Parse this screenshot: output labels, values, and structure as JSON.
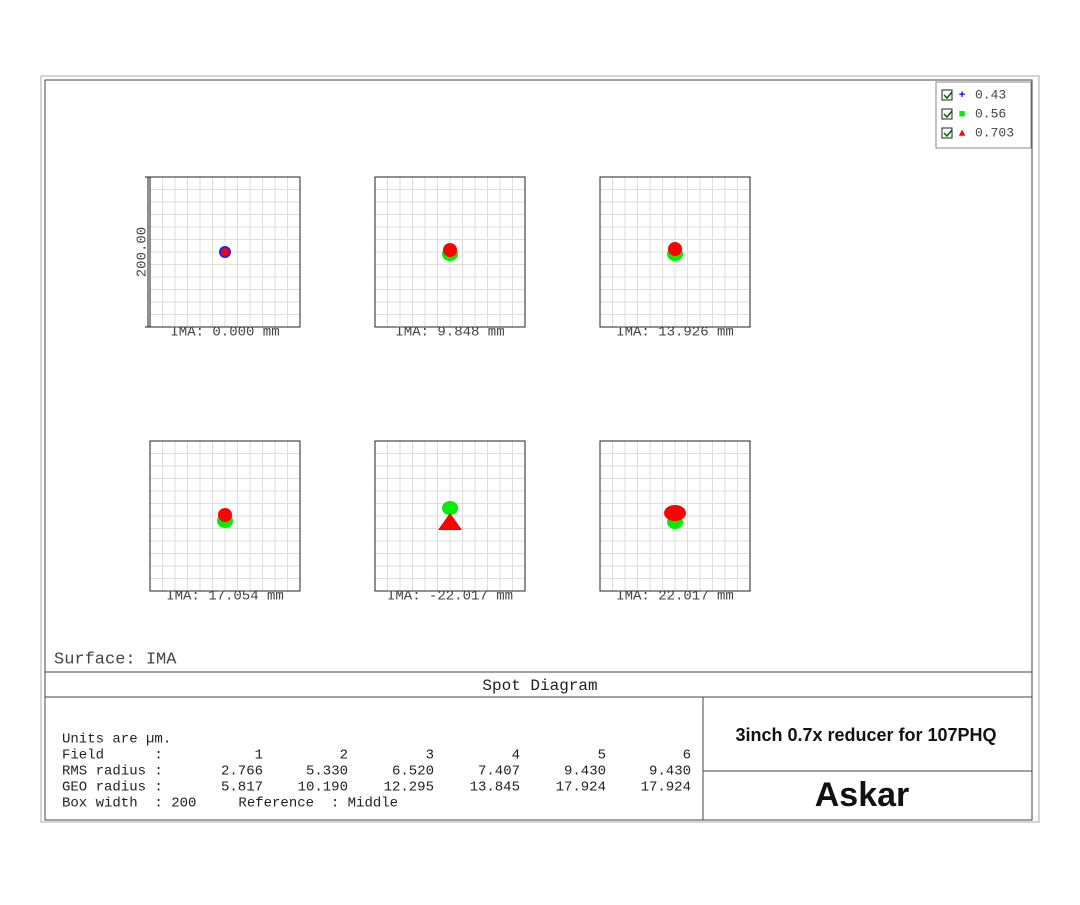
{
  "legend": [
    {
      "label": "0.43",
      "color": "#0000ff",
      "symbol": "+"
    },
    {
      "label": "0.56",
      "color": "#00ee00",
      "symbol": "■"
    },
    {
      "label": "0.703",
      "color": "#ff0000",
      "symbol": "▲"
    }
  ],
  "axis_label": "200.00",
  "panels": [
    {
      "label": "IMA: 0.000 mm"
    },
    {
      "label": "IMA: 9.848 mm"
    },
    {
      "label": "IMA: 13.926 mm"
    },
    {
      "label": "IMA: 17.054 mm"
    },
    {
      "label": "IMA: -22.017 mm"
    },
    {
      "label": "IMA: 22.017 mm"
    }
  ],
  "surface": "Surface: IMA",
  "title": "Spot Diagram",
  "table": {
    "units": "Units are µm.",
    "rows": [
      [
        "Field      :",
        "1",
        "2",
        "3",
        "4",
        "5",
        "6"
      ],
      [
        "RMS radius :",
        "2.766",
        "5.330",
        "6.520",
        "7.407",
        "9.430",
        "9.430"
      ],
      [
        "GEO radius :",
        "5.817",
        "10.190",
        "12.295",
        "13.845",
        "17.924",
        "17.924"
      ]
    ],
    "footer": "Box width  : 200     Reference  : Middle"
  },
  "description": "3inch 0.7x reducer for 107PHQ",
  "brand": "Askar"
}
